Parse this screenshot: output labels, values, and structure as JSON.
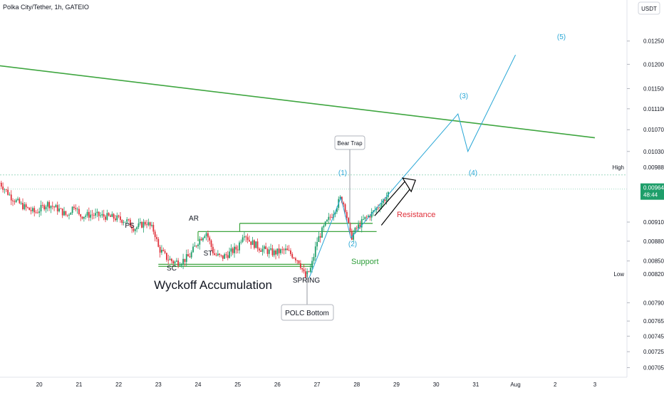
{
  "header": {
    "symbol": "Polka City/Tether, 1h, GATEIO"
  },
  "currency_button": "USDT",
  "colors": {
    "candle_up": "#1e9e6a",
    "candle_down": "#e0303a",
    "trendline": "#3fa640",
    "range_line": "#3fa640",
    "elliott": "#29a7d6",
    "resistance_text": "#e0303a",
    "support_text": "#2e9e3a",
    "price_tag": "#1e9e6a"
  },
  "chart_data": {
    "type": "candlestick",
    "y_axis": {
      "ticks": [
        "0.012500",
        "0.012000",
        "0.011500",
        "0.011100",
        "0.010700",
        "0.010300",
        "0.009100",
        "0.008800",
        "0.008500",
        "0.007900",
        "0.007650",
        "0.007450",
        "0.007250",
        "0.007050"
      ],
      "scale": "log",
      "range": [
        0.00695,
        0.0132
      ]
    },
    "x_axis": {
      "ticks": [
        "20",
        "21",
        "22",
        "23",
        "24",
        "25",
        "26",
        "27",
        "28",
        "29",
        "30",
        "31",
        "Aug",
        "2",
        "3"
      ]
    },
    "high": {
      "label": "High",
      "value": "0.009885"
    },
    "low": {
      "label": "Low",
      "value": "0.008205"
    },
    "last_price": {
      "value": "0.009642",
      "countdown": "48:44"
    },
    "price_path": [
      {
        "x": 19.0,
        "y": 0.00975
      },
      {
        "x": 19.3,
        "y": 0.0095
      },
      {
        "x": 19.6,
        "y": 0.00935
      },
      {
        "x": 19.9,
        "y": 0.00925
      },
      {
        "x": 20.2,
        "y": 0.0094
      },
      {
        "x": 20.5,
        "y": 0.0093
      },
      {
        "x": 20.7,
        "y": 0.0092
      },
      {
        "x": 20.9,
        "y": 0.0094
      },
      {
        "x": 21.0,
        "y": 0.0092
      },
      {
        "x": 21.3,
        "y": 0.00922
      },
      {
        "x": 21.8,
        "y": 0.00918
      },
      {
        "x": 22.2,
        "y": 0.00912
      },
      {
        "x": 22.4,
        "y": 0.009
      },
      {
        "x": 22.7,
        "y": 0.0091
      },
      {
        "x": 22.9,
        "y": 0.00895
      },
      {
        "x": 23.0,
        "y": 0.0087
      },
      {
        "x": 23.2,
        "y": 0.00855
      },
      {
        "x": 23.4,
        "y": 0.00848
      },
      {
        "x": 23.6,
        "y": 0.0085
      },
      {
        "x": 23.8,
        "y": 0.00858
      },
      {
        "x": 24.0,
        "y": 0.0088
      },
      {
        "x": 24.2,
        "y": 0.00895
      },
      {
        "x": 24.4,
        "y": 0.0086
      },
      {
        "x": 24.6,
        "y": 0.00855
      },
      {
        "x": 24.8,
        "y": 0.00862
      },
      {
        "x": 25.0,
        "y": 0.0087
      },
      {
        "x": 25.15,
        "y": 0.00895
      },
      {
        "x": 25.3,
        "y": 0.0088
      },
      {
        "x": 25.6,
        "y": 0.00868
      },
      {
        "x": 25.9,
        "y": 0.00862
      },
      {
        "x": 26.2,
        "y": 0.00866
      },
      {
        "x": 26.4,
        "y": 0.00858
      },
      {
        "x": 26.55,
        "y": 0.0085
      },
      {
        "x": 26.7,
        "y": 0.00825
      },
      {
        "x": 26.85,
        "y": 0.0084
      },
      {
        "x": 27.0,
        "y": 0.0088
      },
      {
        "x": 27.2,
        "y": 0.00905
      },
      {
        "x": 27.4,
        "y": 0.00925
      },
      {
        "x": 27.6,
        "y": 0.0095
      },
      {
        "x": 27.7,
        "y": 0.00935
      },
      {
        "x": 27.85,
        "y": 0.00885
      },
      {
        "x": 28.0,
        "y": 0.009
      },
      {
        "x": 28.2,
        "y": 0.00915
      },
      {
        "x": 28.4,
        "y": 0.00925
      },
      {
        "x": 28.6,
        "y": 0.0094
      },
      {
        "x": 28.8,
        "y": 0.00955
      }
    ],
    "trendline": [
      {
        "x": 18.2,
        "y": 0.01205
      },
      {
        "x": 34.0,
        "y": 0.01055
      }
    ],
    "range_lines": [
      {
        "x1": 23.0,
        "x2": 26.9,
        "y": 0.00845
      },
      {
        "x1": 23.0,
        "x2": 26.9,
        "y": 0.00842
      },
      {
        "x1": 24.0,
        "x2": 28.5,
        "y": 0.00895
      },
      {
        "x1": 25.05,
        "x2": 28.4,
        "y": 0.00908
      }
    ],
    "elliott_wave": [
      {
        "x": 26.8,
        "y": 0.00825
      },
      {
        "x": 27.6,
        "y": 0.0095
      },
      {
        "x": 27.85,
        "y": 0.00885
      },
      {
        "x": 30.55,
        "y": 0.011
      },
      {
        "x": 30.8,
        "y": 0.0103
      },
      {
        "x": 32.0,
        "y": 0.0122
      }
    ],
    "arrow_polygon": [
      {
        "x": 28.45,
        "y": 0.0092
      },
      {
        "x": 29.25,
        "y": 0.0098
      },
      {
        "x": 29.35,
        "y": 0.00965
      },
      {
        "x": 28.62,
        "y": 0.00905
      }
    ],
    "annotations": {
      "wyckoff": [
        {
          "key": "ps",
          "text": "PS"
        },
        {
          "key": "ar",
          "text": "AR"
        },
        {
          "key": "st",
          "text": "ST"
        },
        {
          "key": "sc",
          "text": "SC"
        },
        {
          "key": "spring",
          "text": "SPRING"
        }
      ],
      "waves": [
        {
          "key": "w1",
          "text": "(1)"
        },
        {
          "key": "w2",
          "text": "(2)"
        },
        {
          "key": "w3",
          "text": "(3)"
        },
        {
          "key": "w4",
          "text": "(4)"
        },
        {
          "key": "w5",
          "text": "(5)"
        }
      ],
      "resistance": "Resistance",
      "support": "Support",
      "title": "Wyckoff Accumulation",
      "bear_trap": "Bear Trap",
      "polc_bottom": "POLC Bottom"
    }
  }
}
